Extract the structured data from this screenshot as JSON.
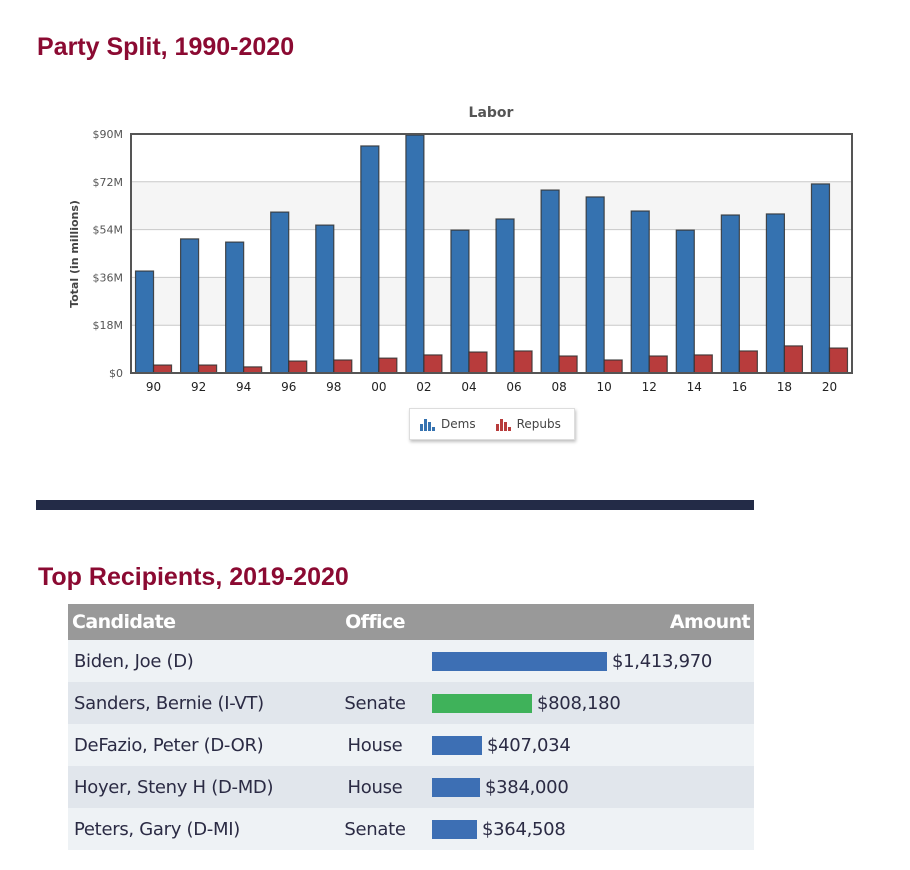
{
  "party_split": {
    "heading": "Party Split, 1990-2020"
  },
  "chart_data": {
    "type": "bar",
    "title": "Labor",
    "xlabel": "",
    "ylabel": "Total (in millions)",
    "ylim": [
      0,
      90
    ],
    "yticks": [
      0,
      18,
      36,
      54,
      72,
      90
    ],
    "ytick_labels": [
      "$0",
      "$18M",
      "$36M",
      "$54M",
      "$72M",
      "$90M"
    ],
    "grid": true,
    "legend_position": "bottom-center",
    "categories": [
      "90",
      "92",
      "94",
      "96",
      "98",
      "00",
      "02",
      "04",
      "06",
      "08",
      "10",
      "12",
      "14",
      "16",
      "18",
      "20"
    ],
    "series": [
      {
        "name": "Dems",
        "color": "#3572b0",
        "values": [
          38.4,
          50.5,
          49.3,
          60.6,
          55.7,
          85.5,
          89.6,
          53.8,
          58.0,
          68.9,
          66.3,
          61.0,
          53.8,
          59.5,
          59.9,
          71.2
        ]
      },
      {
        "name": "Repubs",
        "color": "#b83c3c",
        "values": [
          3.0,
          3.0,
          2.3,
          4.5,
          4.9,
          5.6,
          6.8,
          7.9,
          8.3,
          6.4,
          4.9,
          6.4,
          6.8,
          8.3,
          10.2,
          9.4
        ]
      }
    ]
  },
  "legend": {
    "items": [
      {
        "label": "Dems",
        "color": "#3572b0"
      },
      {
        "label": "Repubs",
        "color": "#b83c3c"
      }
    ]
  },
  "top_recipients": {
    "heading": "Top Recipients, 2019-2020",
    "columns": {
      "candidate": "Candidate",
      "office": "Office",
      "amount": "Amount"
    },
    "max_amount": 1413970,
    "rows": [
      {
        "candidate": "Biden, Joe (D)",
        "office": "",
        "amount": "$1,413,970",
        "value": 1413970,
        "bar_color": "#3d6fb4"
      },
      {
        "candidate": "Sanders, Bernie (I-VT)",
        "office": "Senate",
        "amount": "$808,180",
        "value": 808180,
        "bar_color": "#3fb25a"
      },
      {
        "candidate": "DeFazio, Peter (D-OR)",
        "office": "House",
        "amount": "$407,034",
        "value": 407034,
        "bar_color": "#3d6fb4"
      },
      {
        "candidate": "Hoyer, Steny H (D-MD)",
        "office": "House",
        "amount": "$384,000",
        "value": 384000,
        "bar_color": "#3d6fb4"
      },
      {
        "candidate": "Peters, Gary (D-MI)",
        "office": "Senate",
        "amount": "$364,508",
        "value": 364508,
        "bar_color": "#3d6fb4"
      }
    ]
  }
}
